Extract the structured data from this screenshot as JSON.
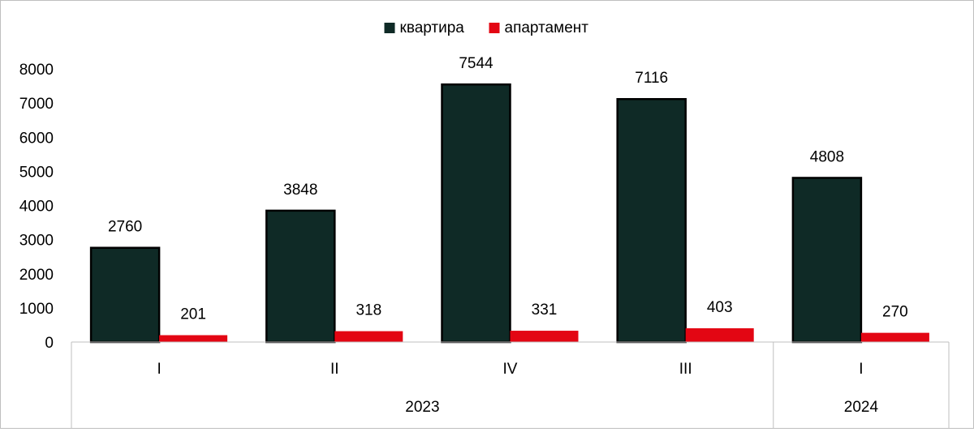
{
  "chart_data": {
    "type": "bar",
    "categories": [
      "I",
      "II",
      "IV",
      "III",
      "I"
    ],
    "groups": [
      {
        "label": "2023",
        "span": 4
      },
      {
        "label": "2024",
        "span": 1
      }
    ],
    "series": [
      {
        "name": "квартира",
        "color": "#0f2a26",
        "values": [
          2760,
          3848,
          7544,
          7116,
          4808
        ]
      },
      {
        "name": "апартамент",
        "color": "#e30613",
        "values": [
          201,
          318,
          331,
          403,
          270
        ]
      }
    ],
    "yticks": [
      0,
      1000,
      2000,
      3000,
      4000,
      5000,
      6000,
      7000,
      8000
    ],
    "ylim": [
      0,
      8000
    ],
    "grid": false,
    "legend_position": "top-center"
  }
}
